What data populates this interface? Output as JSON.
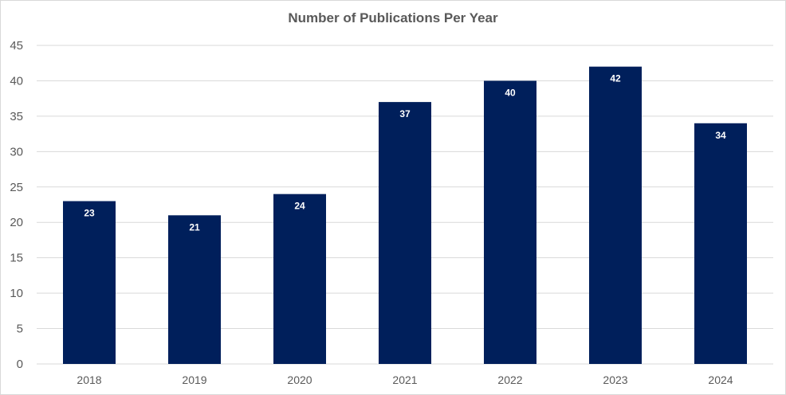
{
  "chart_data": {
    "type": "bar",
    "title": "Number of Publications  Per Year",
    "categories": [
      "2018",
      "2019",
      "2020",
      "2021",
      "2022",
      "2023",
      "2024"
    ],
    "values": [
      23,
      21,
      24,
      37,
      40,
      42,
      34
    ],
    "ylim": [
      0,
      45
    ],
    "yticks": [
      0,
      5,
      10,
      15,
      20,
      25,
      30,
      35,
      40,
      45
    ],
    "grid": true,
    "data_labels": true,
    "bar_color": "#001f5b",
    "gridline_color": "#d9d9d9",
    "text_color": "#595959"
  }
}
